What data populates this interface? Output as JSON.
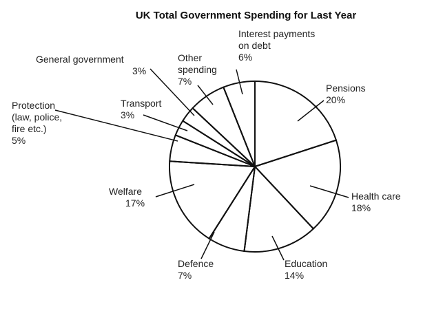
{
  "chart_data": {
    "type": "pie",
    "title": "UK Total Government Spending for Last Year",
    "unit": "%",
    "slices": [
      {
        "name": "Pensions",
        "value": 20,
        "lines": [
          "Pensions"
        ],
        "pct": "20%"
      },
      {
        "name": "Health care",
        "value": 18,
        "lines": [
          "Health care"
        ],
        "pct": "18%"
      },
      {
        "name": "Education",
        "value": 14,
        "lines": [
          "Education"
        ],
        "pct": "14%"
      },
      {
        "name": "Defence",
        "value": 7,
        "lines": [
          "Defence"
        ],
        "pct": "7%"
      },
      {
        "name": "Welfare",
        "value": 17,
        "lines": [
          "Welfare"
        ],
        "pct": "17%"
      },
      {
        "name": "Protection (law, police, fire etc.)",
        "value": 5,
        "lines": [
          "Protection",
          "(law, police,",
          "fire etc.)"
        ],
        "pct": "5%"
      },
      {
        "name": "Transport",
        "value": 3,
        "lines": [
          "Transport"
        ],
        "pct": "3%"
      },
      {
        "name": "General government",
        "value": 3,
        "lines": [
          "General government"
        ],
        "pct": "3%"
      },
      {
        "name": "Other spending",
        "value": 7,
        "lines": [
          "Other",
          "spending"
        ],
        "pct": "7%"
      },
      {
        "name": "Interest payments on debt",
        "value": 6,
        "lines": [
          "Interest payments",
          "on debt"
        ],
        "pct": "6%"
      }
    ]
  }
}
